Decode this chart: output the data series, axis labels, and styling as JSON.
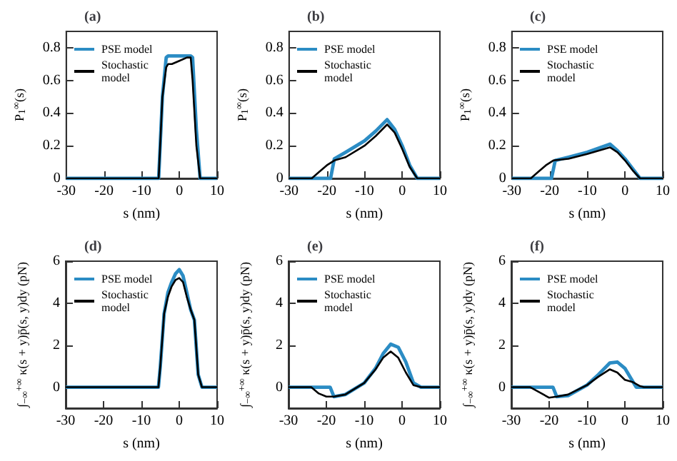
{
  "chart_data": [
    {
      "type": "line",
      "title": "(a)",
      "xlabel": "s (nm)",
      "ylabel": "P$_{1}$$^{∞}$(s)",
      "xlim": [
        -30,
        10
      ],
      "xticks": [
        -30,
        -20,
        -10,
        0,
        10
      ],
      "ylim": [
        0,
        0.9
      ],
      "yticks": [
        0,
        0.2,
        0.4,
        0.6,
        0.8
      ],
      "grid": false,
      "legend": "top left",
      "marker": "none",
      "line_style": "solid",
      "series": [
        {
          "name": "PSE model",
          "color": "#2b8cc4",
          "x": [
            -30,
            -5.5,
            -4.5,
            -3.5,
            -3,
            3,
            3.5,
            4.5,
            5.5,
            10
          ],
          "values": [
            0,
            0,
            0.5,
            0.74,
            0.75,
            0.75,
            0.74,
            0.3,
            0,
            0
          ]
        },
        {
          "name": "Stochastic\nmodel",
          "color": "#000000",
          "x": [
            -30,
            -5.5,
            -4.5,
            -3.5,
            -3,
            -2,
            0,
            2,
            3,
            3.5,
            4.5,
            5.5,
            10
          ],
          "values": [
            0,
            0,
            0.5,
            0.68,
            0.7,
            0.7,
            0.72,
            0.74,
            0.74,
            0.6,
            0.2,
            0,
            0
          ]
        }
      ]
    },
    {
      "type": "line",
      "title": "(b)",
      "xlabel": "s (nm)",
      "ylabel": "P$_{1}$$^{∞}$(s)",
      "xlim": [
        -30,
        10
      ],
      "xticks": [
        -30,
        -20,
        -10,
        0,
        10
      ],
      "ylim": [
        0,
        0.9
      ],
      "yticks": [
        0,
        0.2,
        0.4,
        0.6,
        0.8
      ],
      "grid": false,
      "legend": "top left",
      "marker": "none",
      "line_style": "solid",
      "series": [
        {
          "name": "PSE model",
          "color": "#2b8cc4",
          "x": [
            -30,
            -19,
            -18,
            -15,
            -10,
            -7,
            -4,
            -2,
            0,
            2,
            4,
            10
          ],
          "values": [
            0,
            0,
            0.12,
            0.16,
            0.23,
            0.29,
            0.36,
            0.3,
            0.2,
            0.08,
            0,
            0
          ]
        },
        {
          "name": "Stochastic\nmodel",
          "color": "#000000",
          "x": [
            -30,
            -24,
            -22,
            -20,
            -18,
            -15,
            -10,
            -7,
            -4,
            -2,
            0,
            2,
            4,
            10
          ],
          "values": [
            0,
            0,
            0.04,
            0.08,
            0.11,
            0.13,
            0.2,
            0.26,
            0.33,
            0.28,
            0.18,
            0.07,
            0,
            0
          ]
        }
      ]
    },
    {
      "type": "line",
      "title": "(c)",
      "xlabel": "s (nm)",
      "ylabel": "P$_{1}$$^{∞}$(s)",
      "xlim": [
        -30,
        10
      ],
      "xticks": [
        -30,
        -20,
        -10,
        0,
        10
      ],
      "ylim": [
        0,
        0.9
      ],
      "yticks": [
        0,
        0.2,
        0.4,
        0.6,
        0.8
      ],
      "grid": false,
      "legend": "top left",
      "marker": "none",
      "line_style": "solid",
      "series": [
        {
          "name": "PSE model",
          "color": "#2b8cc4",
          "x": [
            -30,
            -19.5,
            -18.5,
            -15,
            -10,
            -4,
            -2,
            0,
            2,
            4,
            10
          ],
          "values": [
            0,
            0,
            0.11,
            0.13,
            0.16,
            0.21,
            0.17,
            0.12,
            0.06,
            0,
            0
          ]
        },
        {
          "name": "Stochastic\nmodel",
          "color": "#000000",
          "x": [
            -30,
            -25,
            -23,
            -21,
            -19,
            -15,
            -10,
            -4,
            -2,
            0,
            2,
            4,
            10
          ],
          "values": [
            0,
            0,
            0.04,
            0.08,
            0.11,
            0.12,
            0.15,
            0.19,
            0.16,
            0.11,
            0.05,
            0,
            0
          ]
        }
      ]
    },
    {
      "type": "line",
      "title": "(d)",
      "xlabel": "s (nm)",
      "ylabel": "∫$_{−∞}$$^{+∞}$ κ(s + y)p̄(s, y)dy (pN)",
      "xlim": [
        -30,
        10
      ],
      "xticks": [
        -30,
        -20,
        -10,
        0,
        10
      ],
      "ylim": [
        -1,
        6
      ],
      "yticks": [
        0,
        2,
        4,
        6
      ],
      "grid": false,
      "legend": "top left",
      "marker": "none",
      "line_style": "solid",
      "series": [
        {
          "name": "PSE model",
          "color": "#2b8cc4",
          "x": [
            -30,
            -5.5,
            -5,
            -4,
            -3,
            -2,
            -1,
            0,
            1,
            2,
            3,
            4,
            5,
            6,
            10
          ],
          "values": [
            0,
            0,
            1,
            3.5,
            4.5,
            5,
            5.4,
            5.6,
            5.3,
            4.5,
            3.7,
            3.2,
            0.6,
            0,
            0
          ]
        },
        {
          "name": "Stochastic\nmodel",
          "color": "#000000",
          "x": [
            -30,
            -5.5,
            -5,
            -4,
            -3,
            -2,
            -1,
            0,
            1,
            2,
            3,
            4,
            5,
            6,
            10
          ],
          "values": [
            0,
            0,
            1,
            3.5,
            4.3,
            4.8,
            5.1,
            5.2,
            5,
            4.3,
            3.7,
            3.2,
            0.6,
            0,
            0
          ]
        }
      ]
    },
    {
      "type": "line",
      "title": "(e)",
      "xlabel": "s (nm)",
      "ylabel": "∫$_{−∞}$$^{+∞}$ κ(s + y)p̄(s, y)dy (pN)",
      "xlim": [
        -30,
        10
      ],
      "xticks": [
        -30,
        -20,
        -10,
        0,
        10
      ],
      "ylim": [
        -1,
        6
      ],
      "yticks": [
        0,
        2,
        4,
        6
      ],
      "grid": false,
      "legend": "top left",
      "marker": "none",
      "line_style": "solid",
      "series": [
        {
          "name": "PSE model",
          "color": "#2b8cc4",
          "x": [
            -30,
            -19,
            -18,
            -15,
            -10,
            -7,
            -5,
            -3,
            -1,
            1,
            3,
            5,
            10
          ],
          "values": [
            0,
            0,
            -0.45,
            -0.35,
            0.2,
            0.9,
            1.6,
            2.05,
            1.9,
            1.2,
            0.2,
            0,
            0
          ]
        },
        {
          "name": "Stochastic\nmodel",
          "color": "#000000",
          "x": [
            -30,
            -24,
            -22,
            -20,
            -18,
            -15,
            -10,
            -7,
            -5,
            -3,
            -1,
            1,
            3,
            5,
            10
          ],
          "values": [
            0,
            0,
            -0.3,
            -0.45,
            -0.45,
            -0.35,
            0.2,
            0.85,
            1.4,
            1.7,
            1.4,
            0.7,
            0.1,
            0,
            0
          ]
        }
      ]
    },
    {
      "type": "line",
      "title": "(f)",
      "xlabel": "s (nm)",
      "ylabel": "∫$_{−∞}$$^{+∞}$ κ(s + y)p̄(s, y)dy (pN)",
      "xlim": [
        -30,
        10
      ],
      "xticks": [
        -30,
        -20,
        -10,
        0,
        10
      ],
      "ylim": [
        -1,
        6
      ],
      "yticks": [
        0,
        2,
        4,
        6
      ],
      "grid": false,
      "legend": "top left",
      "marker": "none",
      "line_style": "solid",
      "series": [
        {
          "name": "PSE model",
          "color": "#2b8cc4",
          "x": [
            -30,
            -19,
            -18,
            -15,
            -10,
            -7,
            -4,
            -2,
            0,
            2,
            3,
            10
          ],
          "values": [
            0,
            0,
            -0.45,
            -0.4,
            0.1,
            0.6,
            1.15,
            1.2,
            0.9,
            0.3,
            0,
            0
          ]
        },
        {
          "name": "Stochastic\nmodel",
          "color": "#000000",
          "x": [
            -30,
            -25,
            -22,
            -20,
            -18,
            -15,
            -10,
            -7,
            -4,
            -2,
            0,
            2,
            4,
            5,
            10
          ],
          "values": [
            0,
            0,
            -0.3,
            -0.5,
            -0.45,
            -0.35,
            0.1,
            0.5,
            0.85,
            0.7,
            0.35,
            0.25,
            0.05,
            0,
            0
          ]
        }
      ]
    }
  ]
}
